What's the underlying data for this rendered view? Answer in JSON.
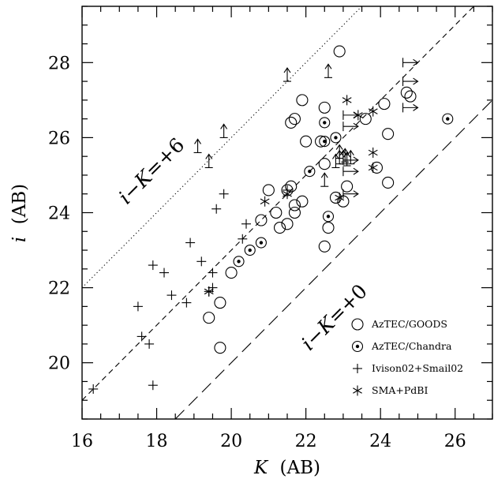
{
  "chart_data": {
    "type": "scatter",
    "title": "",
    "xlabel": "K (AB)",
    "ylabel": "i (AB)",
    "xlabel_parts": {
      "var": "K",
      "unit": "(AB)"
    },
    "ylabel_parts": {
      "var": "i",
      "unit": "(AB)"
    },
    "xlim": [
      16,
      27
    ],
    "ylim": [
      18.5,
      29.5
    ],
    "xticks_major": [
      16,
      18,
      20,
      22,
      24,
      26
    ],
    "yticks_major": [
      20,
      22,
      24,
      26,
      28
    ],
    "x_tick_labels": [
      "16",
      "18",
      "20",
      "22",
      "24",
      "26"
    ],
    "y_tick_labels": [
      "20",
      "22",
      "24",
      "26",
      "28"
    ],
    "minor_tick_step": 0.5,
    "grid": false,
    "legend_position": "bottom-right",
    "lines": [
      {
        "name": "i-K=+6",
        "offset": 6,
        "style": "dotted",
        "label_var": "i−K",
        "label_val": "=+6"
      },
      {
        "name": "i-K=+3",
        "offset": 3,
        "style": "dashed"
      },
      {
        "name": "i-K=+0",
        "offset": 0,
        "style": "longdash",
        "label_var": "i−K",
        "label_val": "=+0"
      }
    ],
    "series": [
      {
        "name": "AzTEC/GOODS",
        "marker": "open-circle",
        "points": [
          [
            19.4,
            21.2
          ],
          [
            19.7,
            21.6
          ],
          [
            19.7,
            20.4
          ],
          [
            20.0,
            22.4
          ],
          [
            20.8,
            23.8
          ],
          [
            21.0,
            24.6
          ],
          [
            21.2,
            24.0
          ],
          [
            21.3,
            23.6
          ],
          [
            21.5,
            23.7
          ],
          [
            21.5,
            24.6
          ],
          [
            21.6,
            24.7
          ],
          [
            21.7,
            24.0
          ],
          [
            21.7,
            24.2
          ],
          [
            21.9,
            24.3
          ],
          [
            21.6,
            26.4
          ],
          [
            21.7,
            26.5
          ],
          [
            21.9,
            27.0
          ],
          [
            22.0,
            25.9
          ],
          [
            22.4,
            25.9
          ],
          [
            22.5,
            26.8
          ],
          [
            22.5,
            23.1
          ],
          [
            22.6,
            23.6
          ],
          [
            22.8,
            24.4
          ],
          [
            22.9,
            28.3
          ],
          [
            23.1,
            24.7
          ],
          [
            23.0,
            24.3
          ],
          [
            23.6,
            26.5
          ],
          [
            23.9,
            25.2
          ],
          [
            24.1,
            26.9
          ],
          [
            24.2,
            26.1
          ],
          [
            24.2,
            24.8
          ],
          [
            24.7,
            27.2
          ],
          [
            24.8,
            27.1
          ],
          [
            22.5,
            25.3
          ]
        ]
      },
      {
        "name": "AzTEC/Chandra",
        "marker": "dotted-circle",
        "points": [
          [
            20.2,
            22.7
          ],
          [
            20.5,
            23.0
          ],
          [
            20.8,
            23.2
          ],
          [
            22.1,
            25.1
          ],
          [
            22.5,
            26.4
          ],
          [
            22.5,
            25.9
          ],
          [
            22.6,
            23.9
          ],
          [
            22.8,
            26.0
          ],
          [
            25.8,
            26.5
          ]
        ]
      },
      {
        "name": "Ivison02+Smail02",
        "marker": "plus",
        "points": [
          [
            16.3,
            19.3
          ],
          [
            17.5,
            21.5
          ],
          [
            17.6,
            20.7
          ],
          [
            17.8,
            20.5
          ],
          [
            17.9,
            19.4
          ],
          [
            17.9,
            22.6
          ],
          [
            18.2,
            22.4
          ],
          [
            18.4,
            21.8
          ],
          [
            18.8,
            21.6
          ],
          [
            18.9,
            23.2
          ],
          [
            19.2,
            22.7
          ],
          [
            19.4,
            21.9
          ],
          [
            19.5,
            22.0
          ],
          [
            19.5,
            22.4
          ],
          [
            19.6,
            24.1
          ],
          [
            19.8,
            24.5
          ],
          [
            20.3,
            23.3
          ],
          [
            20.4,
            23.7
          ],
          [
            21.5,
            24.6
          ]
        ]
      },
      {
        "name": "SMA+PdBI",
        "marker": "asterisk",
        "points": [
          [
            19.4,
            21.9
          ],
          [
            20.9,
            24.3
          ],
          [
            21.5,
            24.5
          ],
          [
            22.9,
            24.4
          ],
          [
            23.1,
            27.0
          ],
          [
            23.4,
            26.6
          ],
          [
            23.8,
            26.7
          ],
          [
            23.8,
            25.6
          ],
          [
            23.8,
            25.2
          ]
        ]
      }
    ],
    "limits": [
      {
        "x": 19.1,
        "y": 25.6,
        "dir": "up"
      },
      {
        "x": 19.4,
        "y": 25.2,
        "dir": "up"
      },
      {
        "x": 19.8,
        "y": 26.0,
        "dir": "up"
      },
      {
        "x": 21.5,
        "y": 27.5,
        "dir": "up"
      },
      {
        "x": 22.6,
        "y": 27.6,
        "dir": "up"
      },
      {
        "x": 22.5,
        "y": 24.7,
        "dir": "up"
      },
      {
        "x": 22.8,
        "y": 25.2,
        "dir": "up"
      },
      {
        "x": 22.9,
        "y": 25.3,
        "dir": "up"
      },
      {
        "x": 23.0,
        "y": 25.3,
        "dir": "up"
      },
      {
        "x": 23.05,
        "y": 25.35,
        "dir": "up"
      },
      {
        "x": 23.1,
        "y": 25.25,
        "dir": "up"
      },
      {
        "x": 23.2,
        "y": 25.3,
        "dir": "up"
      },
      {
        "x": 22.9,
        "y": 25.45,
        "dir": "up"
      },
      {
        "x": 23.0,
        "y": 26.6,
        "dir": "right"
      },
      {
        "x": 23.0,
        "y": 26.3,
        "dir": "right"
      },
      {
        "x": 23.0,
        "y": 25.4,
        "dir": "right"
      },
      {
        "x": 23.0,
        "y": 25.1,
        "dir": "right"
      },
      {
        "x": 23.0,
        "y": 24.5,
        "dir": "right"
      },
      {
        "x": 24.6,
        "y": 28.0,
        "dir": "right"
      },
      {
        "x": 24.6,
        "y": 27.5,
        "dir": "right"
      },
      {
        "x": 24.6,
        "y": 26.8,
        "dir": "right"
      }
    ]
  }
}
